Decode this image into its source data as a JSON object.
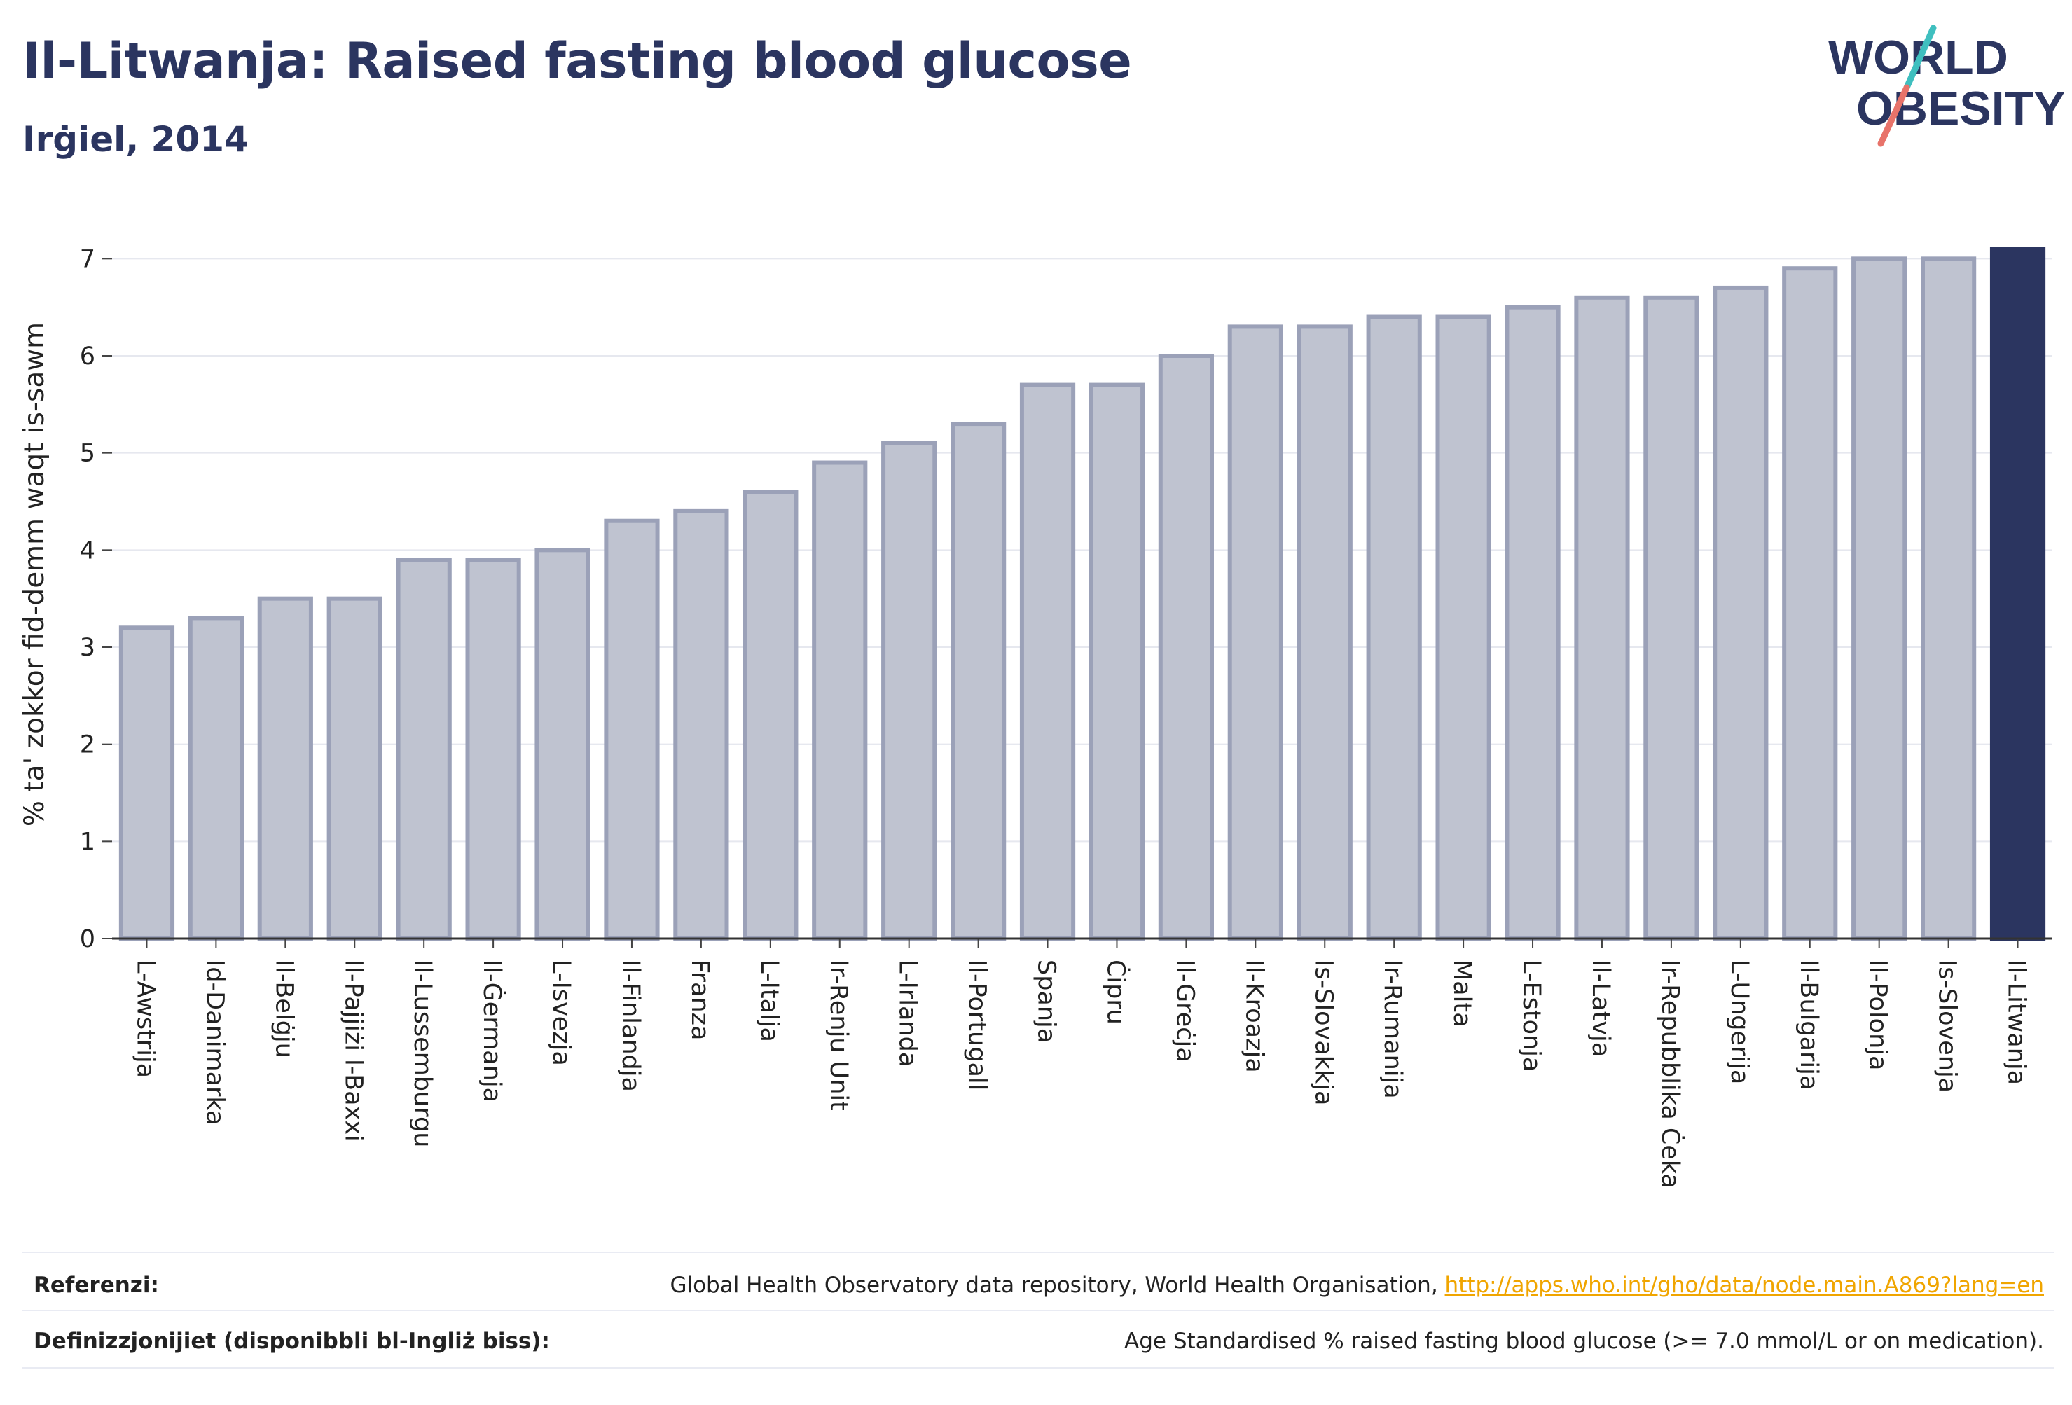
{
  "header": {
    "title": "Il-Litwanja: Raised fasting blood glucose",
    "subtitle": "Irġiel, 2014"
  },
  "logo": {
    "line1": "WORLD",
    "line2": "OBESITY",
    "accent_teal": "#3fbfbf",
    "accent_coral": "#e8736a"
  },
  "colors": {
    "bar_fill": "#bfc3d0",
    "bar_stroke": "#9ba1b8",
    "highlight": "#2b3560",
    "text": "#2b3560"
  },
  "chart_data": {
    "type": "bar",
    "ylabel": "% ta' zokkor fid-demm waqt is-sawm",
    "ylim": [
      0,
      7.5
    ],
    "yticks": [
      0,
      1,
      2,
      3,
      4,
      5,
      6,
      7
    ],
    "grid": true,
    "highlight_category": "Il-Litwanja",
    "categories": [
      "L-Awstrija",
      "Id-Danimarka",
      "Il-Belġju",
      "Il-Pajjiżi l-Baxxi",
      "Il-Lussemburgu",
      "Il-Ġermanja",
      "L-Isvezja",
      "Il-Finlandja",
      "Franza",
      "L-Italja",
      "Ir-Renju Unit",
      "L-Irlanda",
      "Il-Portugall",
      "Spanja",
      "Ċipru",
      "Il-Greċja",
      "Il-Kroazja",
      "Is-Slovakkja",
      "Ir-Rumanija",
      "Malta",
      "L-Estonja",
      "Il-Latvja",
      "Ir-Repubblika Ċeka",
      "L-Ungerija",
      "Il-Bulgarija",
      "Il-Polonja",
      "Is-Slovenja",
      "Il-Litwanja"
    ],
    "values": [
      3.2,
      3.3,
      3.5,
      3.5,
      3.9,
      3.9,
      4.0,
      4.3,
      4.4,
      4.6,
      4.9,
      5.1,
      5.3,
      5.7,
      5.7,
      6.0,
      6.3,
      6.3,
      6.4,
      6.4,
      6.5,
      6.6,
      6.6,
      6.7,
      6.9,
      7.0,
      7.0,
      7.1
    ]
  },
  "footer": {
    "references_label": "Referenzi:",
    "references_text": "Global Health Observatory data repository, World Health Organisation, ",
    "references_link": "http://apps.who.int/gho/data/node.main.A869?lang=en",
    "definitions_label": "Definizzjonijiet (disponibbli bl-Ingliż biss):",
    "definitions_text": "Age Standardised % raised fasting blood glucose (>= 7.0 mmol/L or on medication)."
  }
}
